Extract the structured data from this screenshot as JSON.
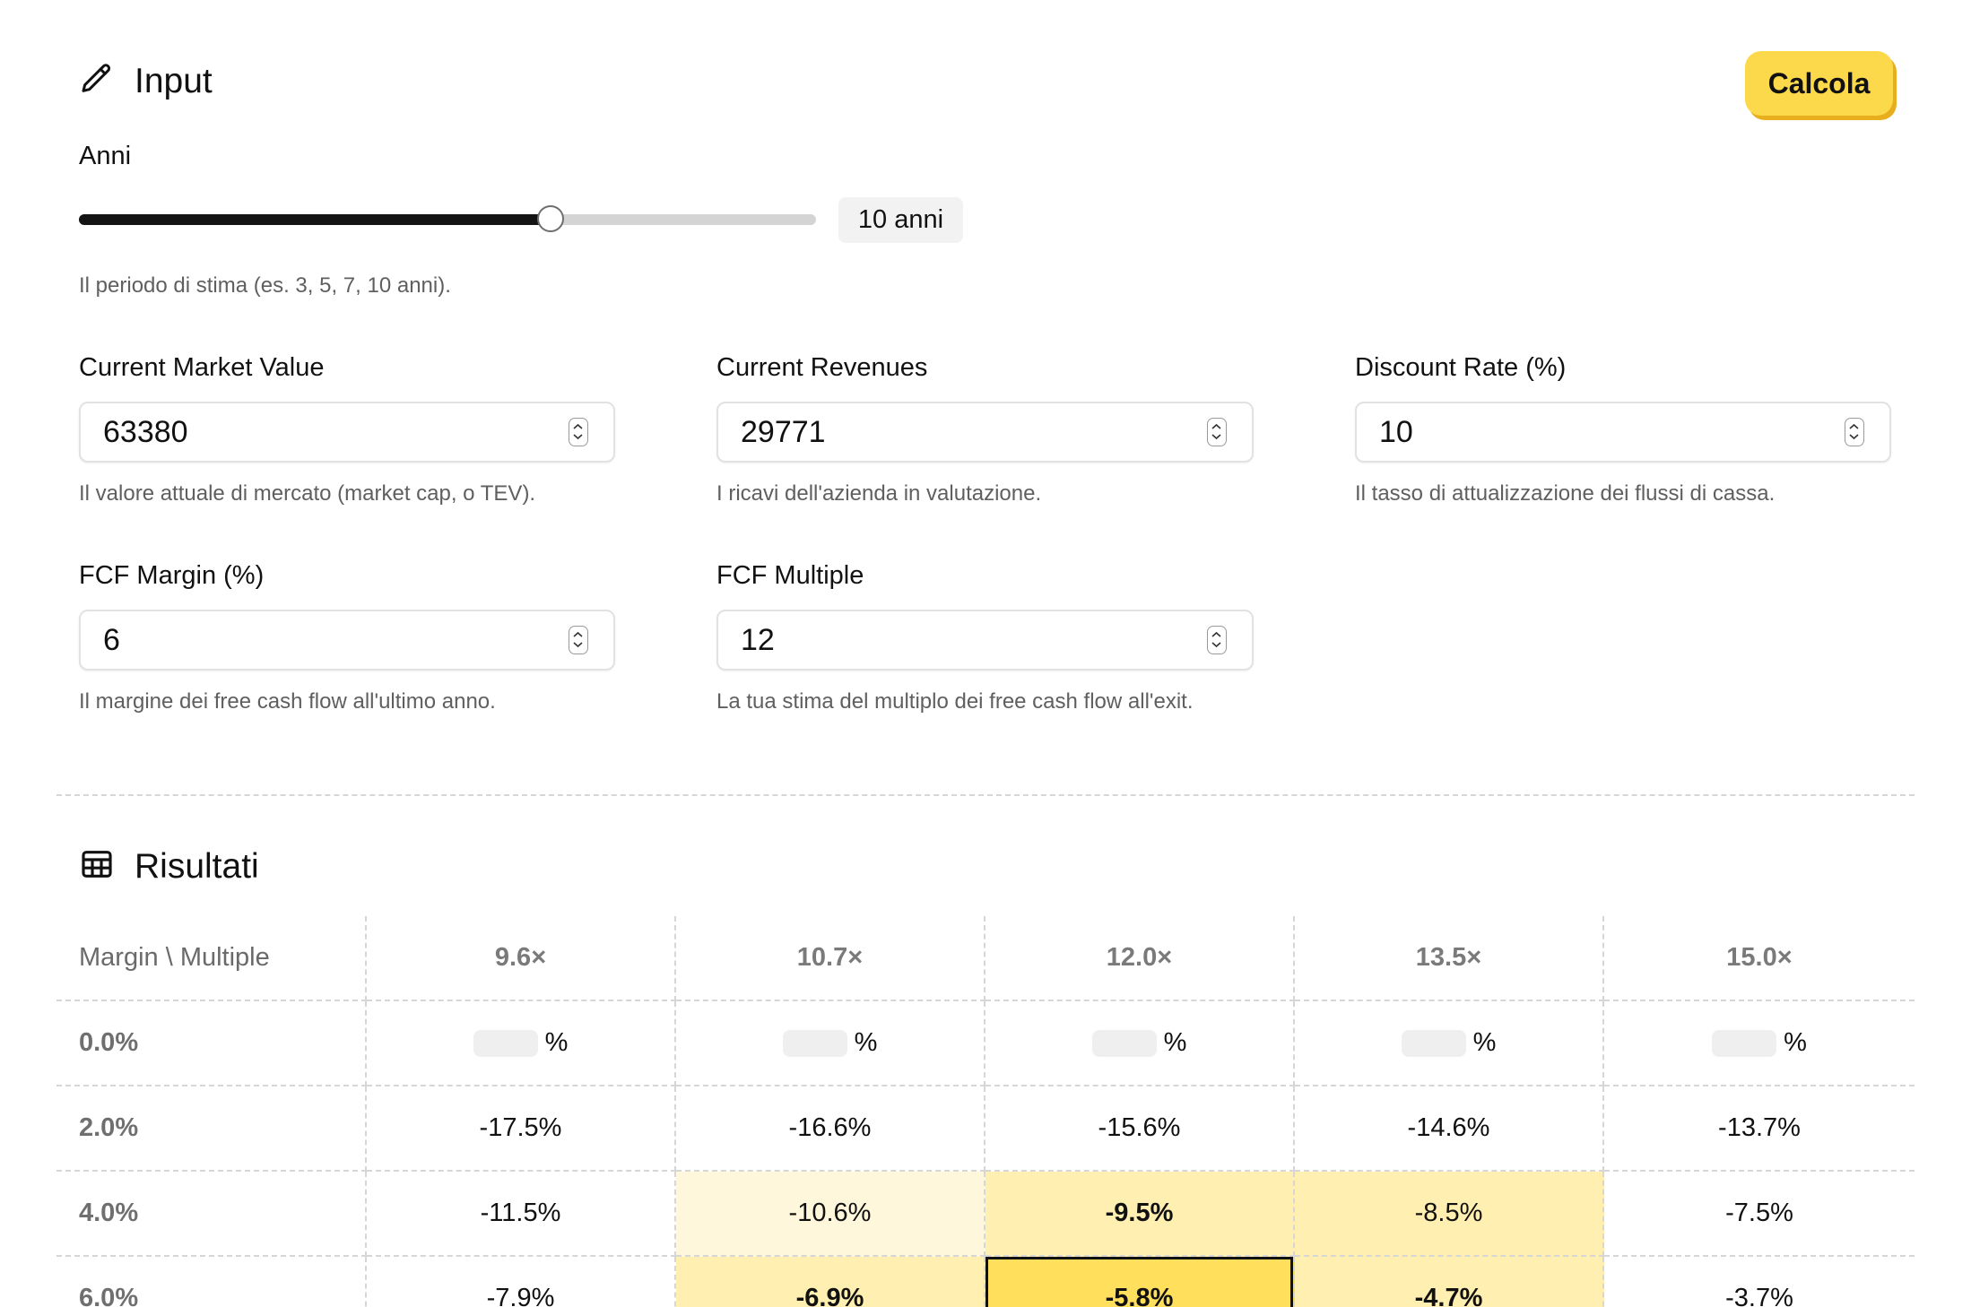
{
  "input": {
    "title": "Input",
    "calc_label": "Calcola",
    "years": {
      "label": "Anni",
      "badge": "10 anni",
      "help": "Il periodo di stima (es. 3, 5, 7, 10 anni).",
      "level": 0.64
    },
    "fields": {
      "market_value": {
        "label": "Current Market Value",
        "value": "63380",
        "help": "Il valore attuale di mercato (market cap, o TEV)."
      },
      "revenues": {
        "label": "Current Revenues",
        "value": "29771",
        "help": "I ricavi dell'azienda in valutazione."
      },
      "discount": {
        "label": "Discount Rate (%)",
        "value": "10",
        "help": "Il tasso di attualizzazione dei flussi di cassa."
      },
      "margin": {
        "label": "FCF Margin (%)",
        "value": "6",
        "help": "Il margine dei free cash flow all'ultimo anno."
      },
      "multiple": {
        "label": "FCF Multiple",
        "value": "12",
        "help": "La tua stima del multiplo dei free cash flow all'exit."
      }
    }
  },
  "results": {
    "title": "Risultati",
    "corner": "Margin \\ Multiple",
    "columns": [
      "9.6×",
      "10.7×",
      "12.0×",
      "13.5×",
      "15.0×"
    ],
    "rows": [
      {
        "label": "0.0%",
        "cells": [
          "%",
          "%",
          "%",
          "%",
          "%"
        ]
      },
      {
        "label": "2.0%",
        "cells": [
          "-17.5%",
          "-16.6%",
          "-15.6%",
          "-14.6%",
          "-13.7%"
        ]
      },
      {
        "label": "4.0%",
        "cells": [
          "-11.5%",
          "-10.6%",
          "-9.5%",
          "-8.5%",
          "-7.5%"
        ]
      },
      {
        "label": "6.0%",
        "cells": [
          "-7.9%",
          "-6.9%",
          "-5.8%",
          "-4.7%",
          "-3.7%"
        ]
      }
    ]
  }
}
